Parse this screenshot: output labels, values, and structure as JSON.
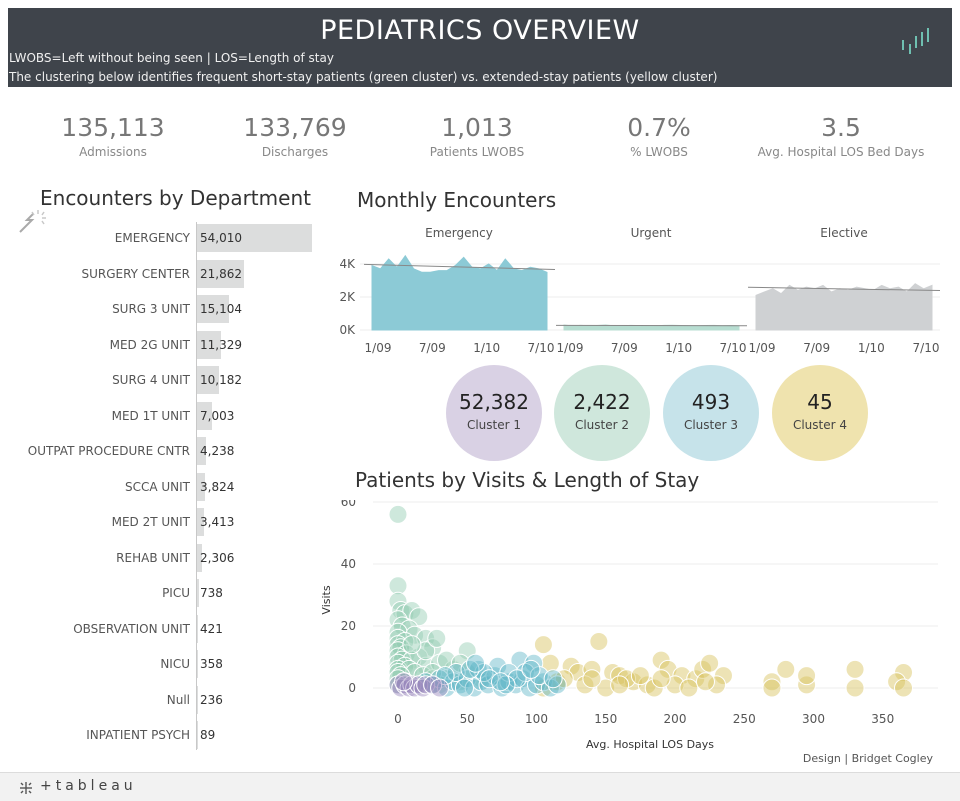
{
  "header": {
    "title": "PEDIATRICS OVERVIEW",
    "subtitle_1": "LWOBS=Left without being seen | LOS=Length of stay",
    "subtitle_2": "The clustering below identifies frequent short-stay patients (green cluster) vs. extended-stay patients (yellow cluster)",
    "logo_icon": "tableau-bars-icon"
  },
  "kpis": [
    {
      "value": "135,113",
      "label": "Admissions"
    },
    {
      "value": "133,769",
      "label": "Discharges"
    },
    {
      "value": "1,013",
      "label": "Patients LWOBS"
    },
    {
      "value": "0.7%",
      "label": "% LWOBS"
    },
    {
      "value": "3.5",
      "label": "Avg. Hospital LOS Bed Days"
    }
  ],
  "department": {
    "title": "Encounters by Department",
    "items": [
      {
        "label": "EMERGENCY",
        "value": 54010,
        "display": "54,010"
      },
      {
        "label": "SURGERY CENTER",
        "value": 21862,
        "display": "21,862"
      },
      {
        "label": "SURG 3 UNIT",
        "value": 15104,
        "display": "15,104"
      },
      {
        "label": "MED 2G UNIT",
        "value": 11329,
        "display": "11,329"
      },
      {
        "label": "SURG 4 UNIT",
        "value": 10182,
        "display": "10,182"
      },
      {
        "label": "MED 1T UNIT",
        "value": 7003,
        "display": "7,003"
      },
      {
        "label": "OUTPAT PROCEDURE CNTR",
        "value": 4238,
        "display": "4,238"
      },
      {
        "label": "SCCA UNIT",
        "value": 3824,
        "display": "3,824"
      },
      {
        "label": "MED 2T UNIT",
        "value": 3413,
        "display": "3,413"
      },
      {
        "label": "REHAB UNIT",
        "value": 2306,
        "display": "2,306"
      },
      {
        "label": "PICU",
        "value": 738,
        "display": "738"
      },
      {
        "label": "OBSERVATION UNIT",
        "value": 421,
        "display": "421"
      },
      {
        "label": "NICU",
        "value": 358,
        "display": "358"
      },
      {
        "label": "Null",
        "value": 236,
        "display": "236"
      },
      {
        "label": "INPATIENT PSYCH",
        "value": 89,
        "display": "89"
      }
    ]
  },
  "monthly": {
    "title": "Monthly Encounters",
    "y_ticks": [
      "4K",
      "2K",
      "0K"
    ],
    "x_ticks": [
      "1/09",
      "7/09",
      "1/10",
      "7/10"
    ],
    "panels": [
      {
        "name": "Emergency",
        "color": "#8ccad6",
        "values": [
          3900,
          3700,
          4300,
          3800,
          4500,
          3700,
          3500,
          3500,
          3600,
          3600,
          3900,
          4400,
          3800,
          3700,
          4000,
          3600,
          4300,
          3700,
          3600,
          3800,
          3700,
          3500
        ]
      },
      {
        "name": "Urgent",
        "color": "#b7ddd1",
        "values": [
          300,
          250,
          280,
          260,
          270,
          300,
          250,
          260,
          280,
          270,
          260,
          250,
          280,
          290,
          270,
          260,
          250,
          270,
          280,
          260,
          270,
          250
        ]
      },
      {
        "name": "Elective",
        "color": "#cfd1d3",
        "values": [
          2100,
          2300,
          2500,
          2200,
          2700,
          2400,
          2600,
          2500,
          2700,
          2300,
          2500,
          2400,
          2600,
          2500,
          2400,
          2700,
          2500,
          2600,
          2300,
          2800,
          2500,
          2700
        ]
      }
    ]
  },
  "clusters": [
    {
      "value": "52,382",
      "label": "Cluster 1",
      "color": "#d9d1e4"
    },
    {
      "value": "2,422",
      "label": "Cluster 2",
      "color": "#cfe7dc"
    },
    {
      "value": "493",
      "label": "Cluster 3",
      "color": "#c6e3ea"
    },
    {
      "value": "45",
      "label": "Cluster 4",
      "color": "#efe3ae"
    }
  ],
  "scatter": {
    "title": "Patients by Visits & Length of Stay",
    "xlabel": "Avg. Hospital LOS Days",
    "ylabel": "Visits",
    "x_ticks": [
      0,
      50,
      100,
      150,
      200,
      250,
      300,
      350
    ],
    "y_ticks": [
      0,
      20,
      40,
      60
    ],
    "colors": {
      "cluster1": "#9a88bd",
      "cluster2": "#93cbb2",
      "cluster3": "#5fb5c8",
      "cluster4": "#d8c25a"
    }
  },
  "chart_data": [
    {
      "type": "bar",
      "title": "Encounters by Department",
      "categories": [
        "EMERGENCY",
        "SURGERY CENTER",
        "SURG 3 UNIT",
        "MED 2G UNIT",
        "SURG 4 UNIT",
        "MED 1T UNIT",
        "OUTPAT PROCEDURE CNTR",
        "SCCA UNIT",
        "MED 2T UNIT",
        "REHAB UNIT",
        "PICU",
        "OBSERVATION UNIT",
        "NICU",
        "Null",
        "INPATIENT PSYCH"
      ],
      "values": [
        54010,
        21862,
        15104,
        11329,
        10182,
        7003,
        4238,
        3824,
        3413,
        2306,
        738,
        421,
        358,
        236,
        89
      ]
    },
    {
      "type": "area",
      "title": "Monthly Encounters",
      "x_ticks": [
        "1/09",
        "7/09",
        "1/10",
        "7/10"
      ],
      "ylim": [
        0,
        4500
      ],
      "series": [
        {
          "name": "Emergency",
          "values": [
            3900,
            3700,
            4300,
            3800,
            4500,
            3700,
            3500,
            3500,
            3600,
            3600,
            3900,
            4400,
            3800,
            3700,
            4000,
            3600,
            4300,
            3700,
            3600,
            3800,
            3700,
            3500
          ]
        },
        {
          "name": "Urgent",
          "values": [
            300,
            250,
            280,
            260,
            270,
            300,
            250,
            260,
            280,
            270,
            260,
            250,
            280,
            290,
            270,
            260,
            250,
            270,
            280,
            260,
            270,
            250
          ]
        },
        {
          "name": "Elective",
          "values": [
            2100,
            2300,
            2500,
            2200,
            2700,
            2400,
            2600,
            2500,
            2700,
            2300,
            2500,
            2400,
            2600,
            2500,
            2400,
            2700,
            2500,
            2600,
            2300,
            2800,
            2500,
            2700
          ]
        }
      ]
    },
    {
      "type": "scatter",
      "title": "Patients by Visits & Length of Stay",
      "xlabel": "Avg. Hospital LOS Days",
      "ylabel": "Visits",
      "xlim": [
        -15,
        390
      ],
      "ylim": [
        -5,
        62
      ],
      "series": [
        {
          "name": "Cluster 1",
          "points": [
            [
              0,
              1
            ],
            [
              2,
              0
            ],
            [
              5,
              1
            ],
            [
              8,
              0
            ],
            [
              10,
              1
            ],
            [
              12,
              0
            ],
            [
              15,
              1
            ],
            [
              18,
              0
            ],
            [
              20,
              1
            ],
            [
              4,
              2
            ],
            [
              25,
              1
            ],
            [
              30,
              0
            ]
          ]
        },
        {
          "name": "Cluster 2",
          "points": [
            [
              0,
              56
            ],
            [
              0,
              33
            ],
            [
              0,
              28
            ],
            [
              2,
              25
            ],
            [
              5,
              24
            ],
            [
              10,
              25
            ],
            [
              15,
              23
            ],
            [
              0,
              22
            ],
            [
              3,
              20
            ],
            [
              8,
              19
            ],
            [
              0,
              18
            ],
            [
              12,
              17
            ],
            [
              0,
              16
            ],
            [
              5,
              15
            ],
            [
              20,
              16
            ],
            [
              0,
              14
            ],
            [
              2,
              13
            ],
            [
              25,
              13
            ],
            [
              0,
              12
            ],
            [
              6,
              11
            ],
            [
              15,
              10
            ],
            [
              0,
              10
            ],
            [
              3,
              9
            ],
            [
              10,
              9
            ],
            [
              0,
              8
            ],
            [
              5,
              7
            ],
            [
              20,
              7
            ],
            [
              30,
              8
            ],
            [
              0,
              6
            ],
            [
              8,
              6
            ],
            [
              40,
              6
            ],
            [
              0,
              5
            ],
            [
              12,
              5
            ],
            [
              50,
              5
            ],
            [
              2,
              4
            ],
            [
              18,
              4
            ],
            [
              0,
              3
            ],
            [
              25,
              3
            ],
            [
              35,
              3
            ],
            [
              5,
              2
            ],
            [
              45,
              2
            ],
            [
              60,
              3
            ],
            [
              0,
              1
            ],
            [
              15,
              1
            ],
            [
              30,
              1
            ],
            [
              20,
              12
            ],
            [
              10,
              14
            ],
            [
              50,
              12
            ],
            [
              35,
              9
            ],
            [
              25,
              5
            ],
            [
              45,
              8
            ],
            [
              28,
              16
            ]
          ]
        },
        {
          "name": "Cluster 3",
          "points": [
            [
              20,
              2
            ],
            [
              25,
              1
            ],
            [
              30,
              3
            ],
            [
              35,
              0
            ],
            [
              40,
              2
            ],
            [
              45,
              1
            ],
            [
              50,
              3
            ],
            [
              55,
              0
            ],
            [
              60,
              2
            ],
            [
              65,
              1
            ],
            [
              70,
              4
            ],
            [
              75,
              0
            ],
            [
              80,
              2
            ],
            [
              85,
              1
            ],
            [
              90,
              3
            ],
            [
              95,
              0
            ],
            [
              100,
              1
            ],
            [
              105,
              2
            ],
            [
              110,
              0
            ],
            [
              115,
              1
            ],
            [
              42,
              5
            ],
            [
              58,
              6
            ],
            [
              72,
              7
            ],
            [
              88,
              9
            ],
            [
              98,
              8
            ],
            [
              62,
              5
            ],
            [
              80,
              5
            ],
            [
              92,
              5
            ],
            [
              52,
              6
            ],
            [
              34,
              4
            ],
            [
              66,
              3
            ],
            [
              86,
              3
            ],
            [
              102,
              4
            ],
            [
              48,
              0
            ],
            [
              78,
              1
            ],
            [
              112,
              3
            ],
            [
              56,
              8
            ],
            [
              74,
              2
            ],
            [
              96,
              6
            ]
          ]
        },
        {
          "name": "Cluster 4",
          "points": [
            [
              105,
              14
            ],
            [
              145,
              15
            ],
            [
              110,
              8
            ],
            [
              125,
              7
            ],
            [
              130,
              5
            ],
            [
              140,
              6
            ],
            [
              155,
              5
            ],
            [
              160,
              4
            ],
            [
              170,
              2
            ],
            [
              180,
              1
            ],
            [
              190,
              9
            ],
            [
              195,
              6
            ],
            [
              205,
              4
            ],
            [
              215,
              3
            ],
            [
              220,
              6
            ],
            [
              225,
              8
            ],
            [
              235,
              4
            ],
            [
              270,
              2
            ],
            [
              280,
              6
            ],
            [
              295,
              1
            ],
            [
              330,
              6
            ],
            [
              365,
              5
            ],
            [
              360,
              2
            ],
            [
              115,
              2
            ],
            [
              135,
              1
            ],
            [
              150,
              0
            ],
            [
              165,
              3
            ],
            [
              185,
              0
            ],
            [
              200,
              1
            ],
            [
              210,
              0
            ],
            [
              230,
              1
            ],
            [
              270,
              0
            ],
            [
              295,
              4
            ],
            [
              330,
              0
            ],
            [
              365,
              0
            ],
            [
              120,
              3
            ],
            [
              175,
              4
            ],
            [
              105,
              0
            ],
            [
              140,
              3
            ],
            [
              190,
              3
            ],
            [
              222,
              2
            ],
            [
              160,
              1
            ]
          ]
        }
      ]
    }
  ],
  "credit": "Design | Bridget Cogley",
  "footer": {
    "brand": "+tableau",
    "icon": "tableau-logo-icon"
  }
}
